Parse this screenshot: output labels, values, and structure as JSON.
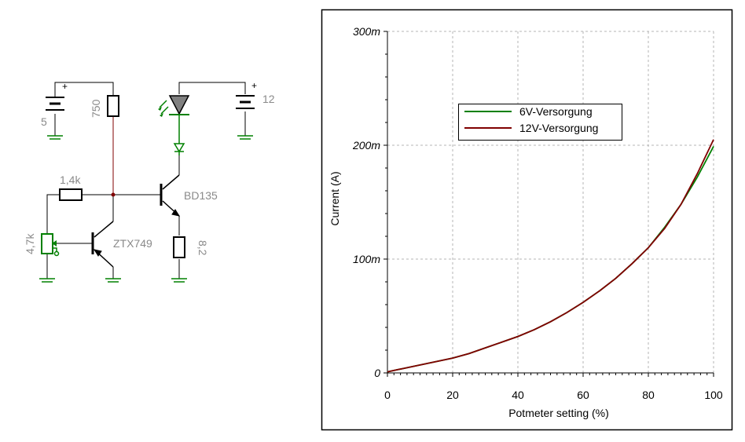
{
  "schematic": {
    "labels": {
      "battery_left": "5",
      "battery_right": "12",
      "plus_left": "+",
      "plus_right": "+",
      "r_top": "750",
      "r_base": "1,4k",
      "pot": "4,7k",
      "q_left": "ZTX749",
      "q_right": "BD135",
      "r_emitter": "8,2"
    }
  },
  "chart_data": {
    "type": "line",
    "xlabel": "Potmeter setting (%)",
    "ylabel": "Current (A)",
    "xlim": [
      0,
      100
    ],
    "ylim": [
      0,
      0.3
    ],
    "xticks": [
      "0",
      "20",
      "40",
      "60",
      "80",
      "100"
    ],
    "yticks": [
      "0",
      "100m",
      "200m",
      "300m"
    ],
    "grid": true,
    "legend_position": "top-center",
    "x": [
      0,
      5,
      10,
      15,
      20,
      25,
      30,
      35,
      40,
      45,
      50,
      55,
      60,
      65,
      70,
      75,
      80,
      85,
      90,
      95,
      100
    ],
    "series": [
      {
        "name": "6V-Versorgung",
        "color": "#008000",
        "values": [
          0.001,
          0.004,
          0.007,
          0.01,
          0.013,
          0.017,
          0.022,
          0.027,
          0.032,
          0.038,
          0.045,
          0.053,
          0.062,
          0.072,
          0.083,
          0.096,
          0.11,
          0.128,
          0.148,
          0.172,
          0.199
        ]
      },
      {
        "name": "12V-Versorgung",
        "color": "#800000",
        "values": [
          0.001,
          0.004,
          0.007,
          0.01,
          0.013,
          0.017,
          0.022,
          0.027,
          0.032,
          0.038,
          0.045,
          0.053,
          0.062,
          0.072,
          0.083,
          0.096,
          0.11,
          0.127,
          0.148,
          0.175,
          0.205
        ]
      }
    ]
  }
}
